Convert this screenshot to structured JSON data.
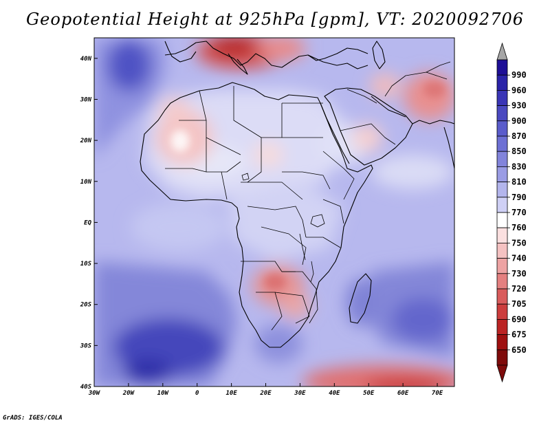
{
  "title": "Geopotential Height at 925hPa [gpm], VT: 2020092706",
  "credit": "GrADS: IGES/COLA",
  "map": {
    "region": "Africa",
    "lon_range": [
      -30,
      75
    ],
    "lat_range": [
      -40,
      45
    ],
    "lat_ticks": [
      "40N",
      "30N",
      "20N",
      "10N",
      "EQ",
      "10S",
      "20S",
      "30S",
      "40S"
    ],
    "lat_values": [
      40,
      30,
      20,
      10,
      0,
      -10,
      -20,
      -30,
      -40
    ],
    "lon_ticks": [
      "30W",
      "20W",
      "10W",
      "0",
      "10E",
      "20E",
      "30E",
      "40E",
      "50E",
      "60E",
      "70E"
    ],
    "lon_values": [
      -30,
      -20,
      -10,
      0,
      10,
      20,
      30,
      40,
      50,
      60,
      70
    ]
  },
  "colorbar": {
    "levels": [
      "990",
      "960",
      "930",
      "900",
      "870",
      "850",
      "830",
      "810",
      "790",
      "770",
      "760",
      "750",
      "740",
      "730",
      "720",
      "705",
      "690",
      "675",
      "650"
    ],
    "colors": [
      "#1e0f96",
      "#2a23a8",
      "#3a35b6",
      "#4a49c0",
      "#5a5ccb",
      "#6d70d4",
      "#8284db",
      "#9a9ce4",
      "#b3b5ec",
      "#cfd0f5",
      "#ffffff",
      "#fbe0e0",
      "#f5c2c2",
      "#eda3a3",
      "#e48080",
      "#d95c5c",
      "#cc3d3d",
      "#bb2424",
      "#9e1010",
      "#7e0b0b"
    ],
    "top_arrow_color": "#a6a6a6",
    "bottom_arrow_color": "#7e0b0b"
  }
}
